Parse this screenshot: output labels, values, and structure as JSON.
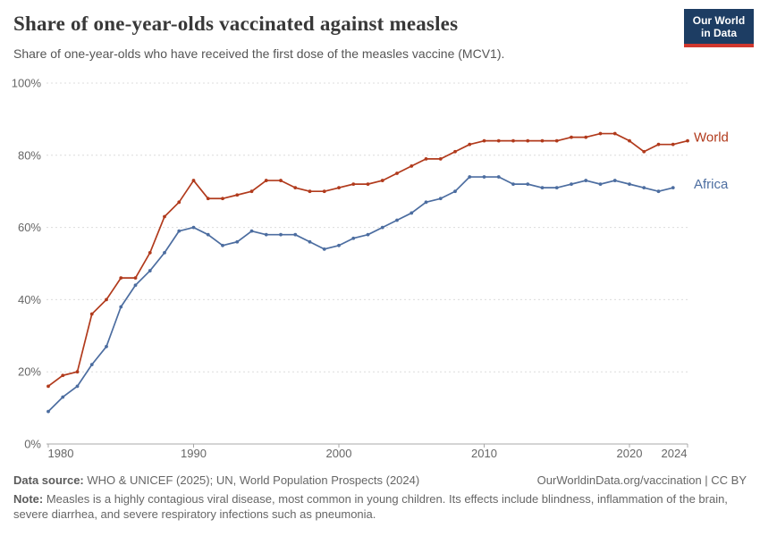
{
  "header": {
    "title": "Share of one-year-olds vaccinated against measles",
    "subtitle": "Share of one-year-olds who have received the first dose of the measles vaccine (MCV1)."
  },
  "logo": {
    "line1": "Our World",
    "line2": "in Data",
    "bg_color": "#1d3d63",
    "stripe_color": "#d0372e"
  },
  "chart_data": {
    "type": "line",
    "title": "Share of one-year-olds vaccinated against measles",
    "xlabel": "",
    "ylabel": "",
    "xlim": [
      1980,
      2024
    ],
    "ylim": [
      0,
      100
    ],
    "grid": true,
    "x_ticks": [
      1980,
      1990,
      2000,
      2010,
      2020,
      2024
    ],
    "y_ticks": [
      {
        "value": 0,
        "label": "0%"
      },
      {
        "value": 20,
        "label": "20%"
      },
      {
        "value": 40,
        "label": "40%"
      },
      {
        "value": 60,
        "label": "60%"
      },
      {
        "value": 80,
        "label": "80%"
      },
      {
        "value": 100,
        "label": "100%"
      }
    ],
    "legend_position": "right-end-of-line",
    "series": [
      {
        "name": "World",
        "color": "#b13a1c",
        "start_year": 1980,
        "end_year": 2024,
        "values": [
          16,
          19,
          20,
          36,
          40,
          46,
          46,
          53,
          63,
          67,
          73,
          68,
          68,
          69,
          70,
          73,
          73,
          71,
          70,
          70,
          71,
          72,
          72,
          73,
          75,
          77,
          79,
          79,
          81,
          83,
          84,
          84,
          84,
          84,
          84,
          84,
          85,
          85,
          86,
          86,
          84,
          81,
          83,
          83,
          84
        ]
      },
      {
        "name": "Africa",
        "color": "#4c6da0",
        "start_year": 1980,
        "end_year": 2023,
        "values": [
          9,
          13,
          16,
          22,
          27,
          38,
          44,
          48,
          53,
          59,
          60,
          58,
          55,
          56,
          59,
          58,
          58,
          58,
          56,
          54,
          55,
          57,
          58,
          60,
          62,
          64,
          67,
          68,
          70,
          74,
          74,
          74,
          72,
          72,
          71,
          71,
          72,
          73,
          72,
          73,
          72,
          71,
          70,
          71
        ]
      }
    ]
  },
  "footer": {
    "source_label": "Data source:",
    "source_text": " WHO & UNICEF (2025); UN, World Population Prospects (2024)",
    "link_text": "OurWorldinData.org/vaccination | CC BY",
    "note_label": "Note:",
    "note_text": " Measles is a highly contagious viral disease, most common in young children. Its effects include blindness, inflammation of the brain, severe diarrhea, and severe respiratory infections such as pneumonia."
  }
}
